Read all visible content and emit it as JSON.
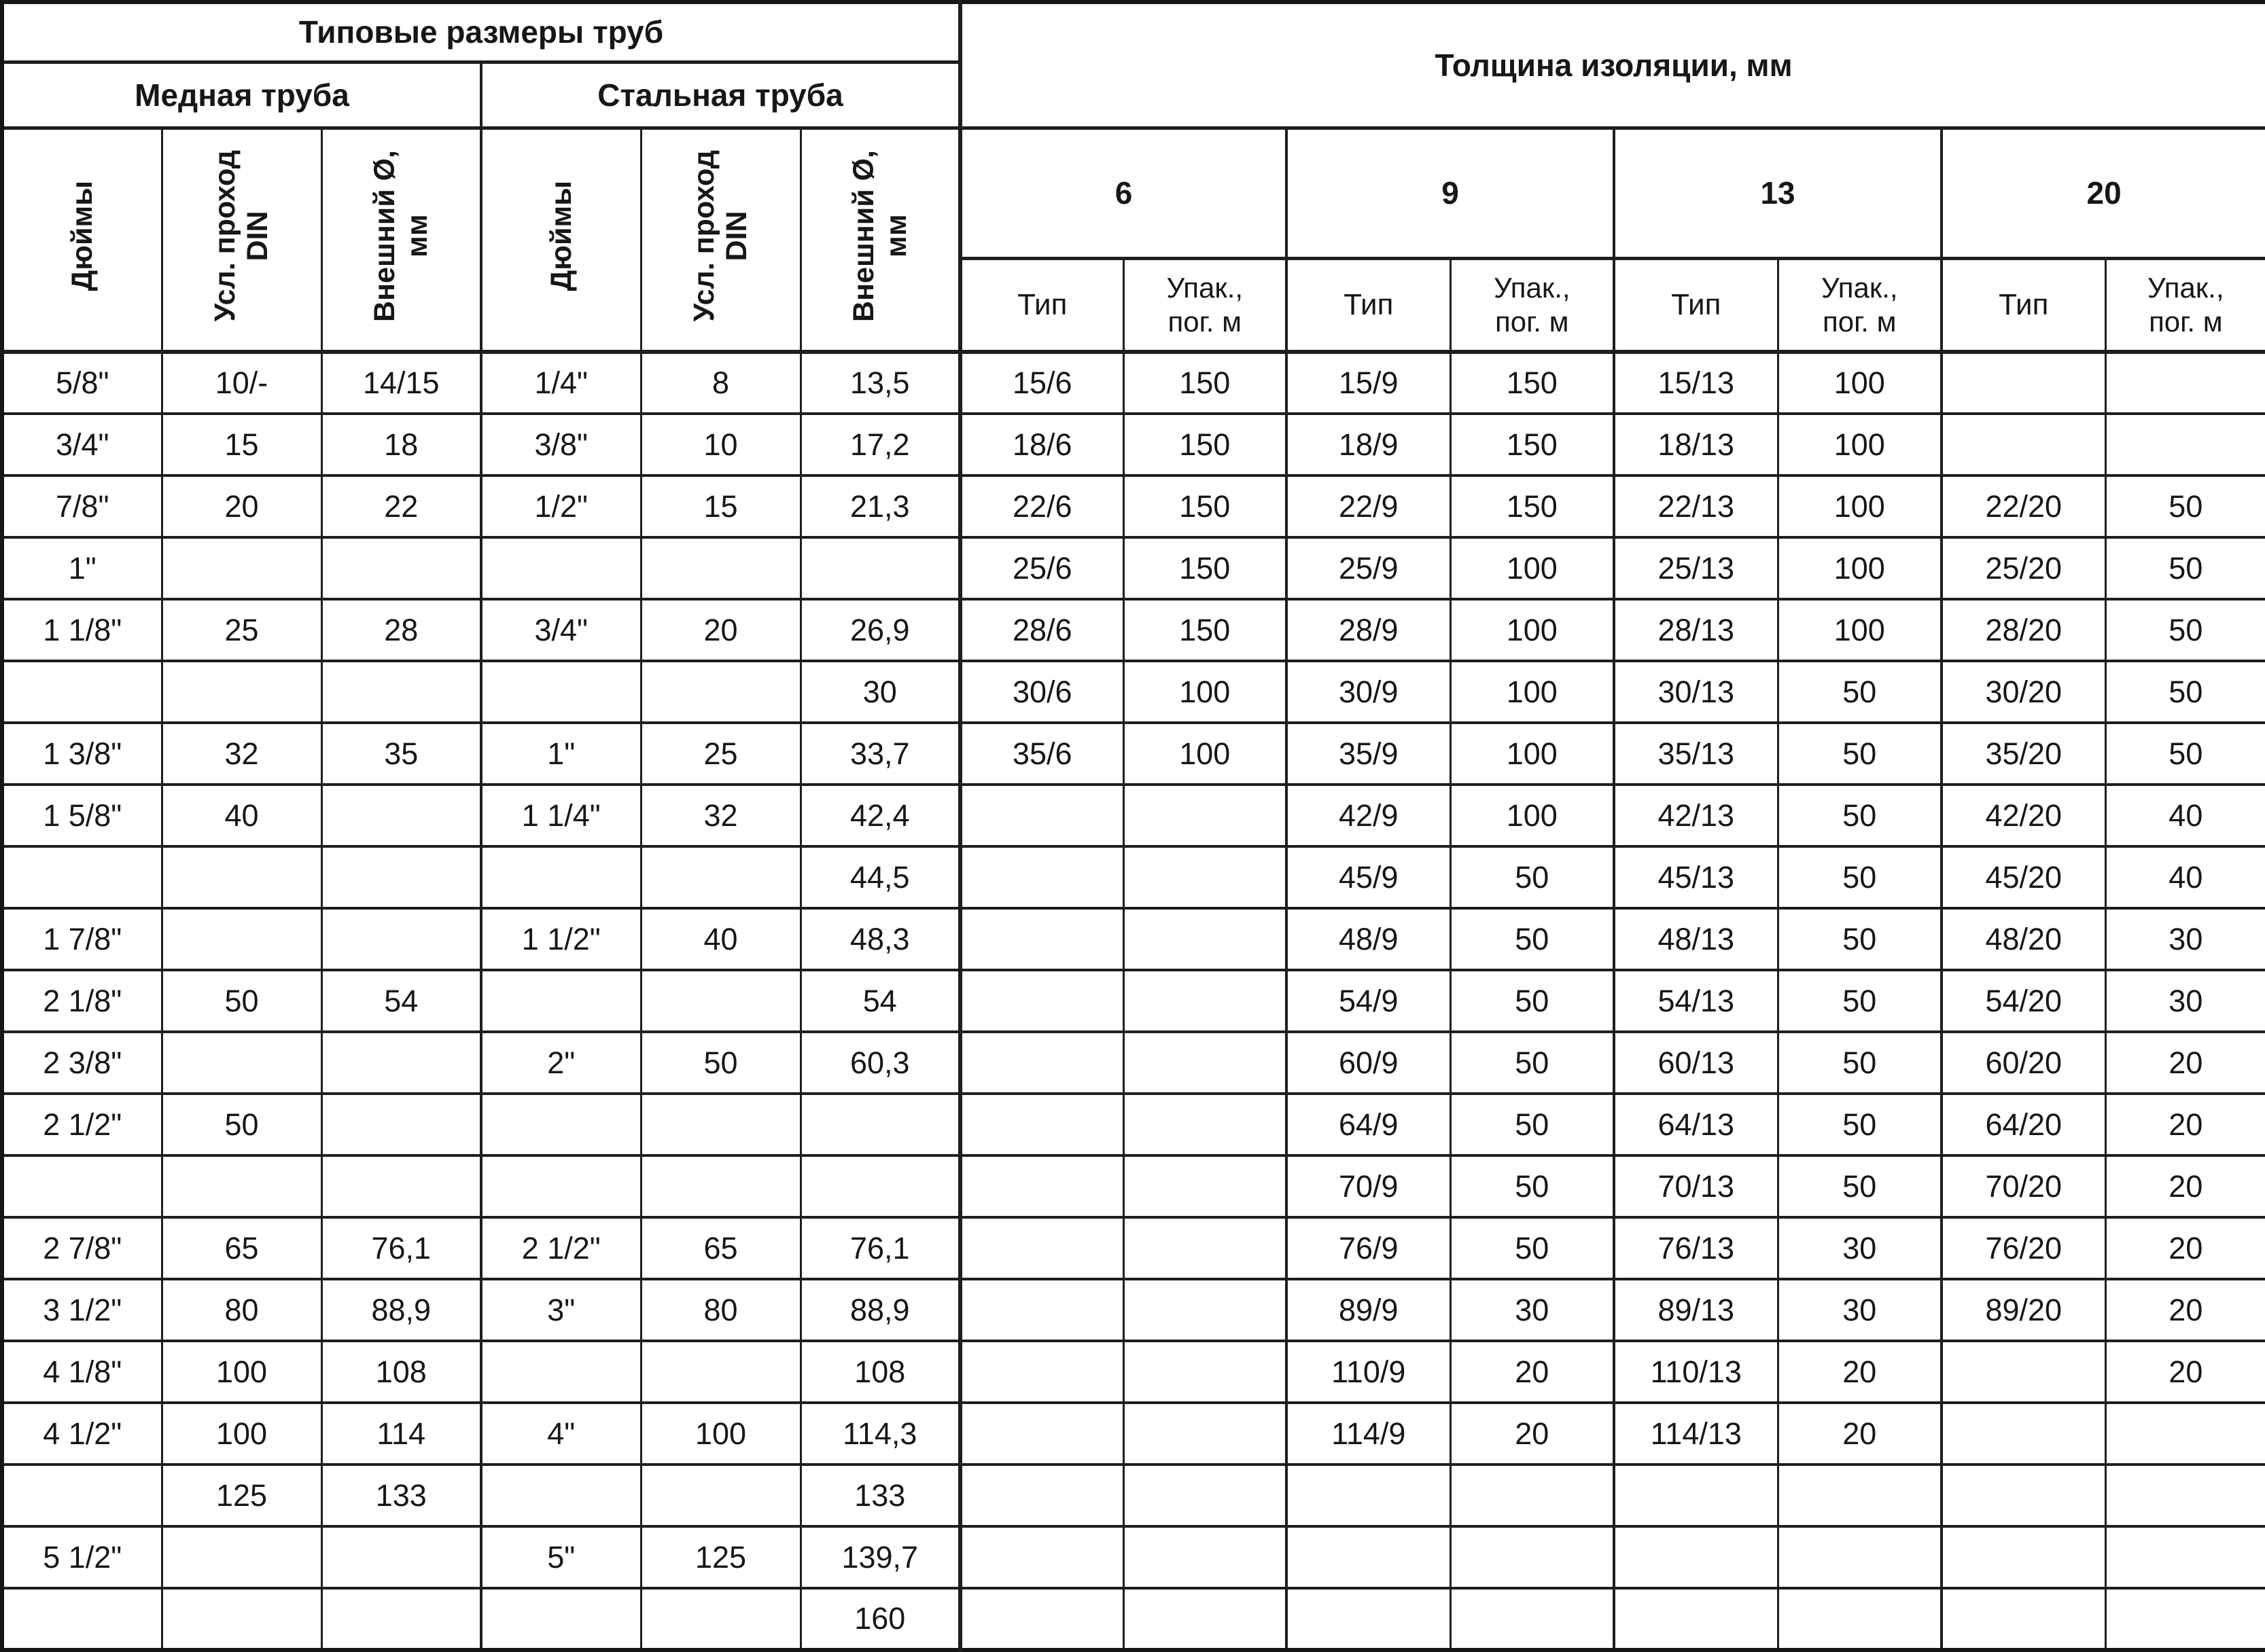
{
  "table": {
    "left_title": "Типовые размеры труб",
    "right_title": "Толщина изоляции, мм",
    "copper_title": "Медная труба",
    "steel_title": "Стальная труба",
    "pipe_columns": [
      "Дюймы",
      "Усл. проход\nDIN",
      "Внешний Ø,\nмм",
      "Дюймы",
      "Усл. проход\nDIN",
      "Внешний Ø,\nмм"
    ],
    "thickness_groups": [
      "6",
      "9",
      "13",
      "20"
    ],
    "type_label": "Тип",
    "pack_label": "Упак.,\nпог. м",
    "rows": [
      [
        "5/8\"",
        "10/-",
        "14/15",
        "1/4\"",
        "8",
        "13,5",
        "15/6",
        "150",
        "15/9",
        "150",
        "15/13",
        "100",
        "",
        ""
      ],
      [
        "3/4\"",
        "15",
        "18",
        "3/8\"",
        "10",
        "17,2",
        "18/6",
        "150",
        "18/9",
        "150",
        "18/13",
        "100",
        "",
        ""
      ],
      [
        "7/8\"",
        "20",
        "22",
        "1/2\"",
        "15",
        "21,3",
        "22/6",
        "150",
        "22/9",
        "150",
        "22/13",
        "100",
        "22/20",
        "50"
      ],
      [
        "1\"",
        "",
        "",
        "",
        "",
        "",
        "25/6",
        "150",
        "25/9",
        "100",
        "25/13",
        "100",
        "25/20",
        "50"
      ],
      [
        "1 1/8\"",
        "25",
        "28",
        "3/4\"",
        "20",
        "26,9",
        "28/6",
        "150",
        "28/9",
        "100",
        "28/13",
        "100",
        "28/20",
        "50"
      ],
      [
        "",
        "",
        "",
        "",
        "",
        "30",
        "30/6",
        "100",
        "30/9",
        "100",
        "30/13",
        "50",
        "30/20",
        "50"
      ],
      [
        "1 3/8\"",
        "32",
        "35",
        "1\"",
        "25",
        "33,7",
        "35/6",
        "100",
        "35/9",
        "100",
        "35/13",
        "50",
        "35/20",
        "50"
      ],
      [
        "1 5/8\"",
        "40",
        "",
        "1 1/4\"",
        "32",
        "42,4",
        "",
        "",
        "42/9",
        "100",
        "42/13",
        "50",
        "42/20",
        "40"
      ],
      [
        "",
        "",
        "",
        "",
        "",
        "44,5",
        "",
        "",
        "45/9",
        "50",
        "45/13",
        "50",
        "45/20",
        "40"
      ],
      [
        "1 7/8\"",
        "",
        "",
        "1 1/2\"",
        "40",
        "48,3",
        "",
        "",
        "48/9",
        "50",
        "48/13",
        "50",
        "48/20",
        "30"
      ],
      [
        "2 1/8\"",
        "50",
        "54",
        "",
        "",
        "54",
        "",
        "",
        "54/9",
        "50",
        "54/13",
        "50",
        "54/20",
        "30"
      ],
      [
        "2 3/8\"",
        "",
        "",
        "2\"",
        "50",
        "60,3",
        "",
        "",
        "60/9",
        "50",
        "60/13",
        "50",
        "60/20",
        "20"
      ],
      [
        "2 1/2\"",
        "50",
        "",
        "",
        "",
        "",
        "",
        "",
        "64/9",
        "50",
        "64/13",
        "50",
        "64/20",
        "20"
      ],
      [
        "",
        "",
        "",
        "",
        "",
        "",
        "",
        "",
        "70/9",
        "50",
        "70/13",
        "50",
        "70/20",
        "20"
      ],
      [
        "2 7/8\"",
        "65",
        "76,1",
        "2 1/2\"",
        "65",
        "76,1",
        "",
        "",
        "76/9",
        "50",
        "76/13",
        "30",
        "76/20",
        "20"
      ],
      [
        "3 1/2\"",
        "80",
        "88,9",
        "3\"",
        "80",
        "88,9",
        "",
        "",
        "89/9",
        "30",
        "89/13",
        "30",
        "89/20",
        "20"
      ],
      [
        "4 1/8\"",
        "100",
        "108",
        "",
        "",
        "108",
        "",
        "",
        "110/9",
        "20",
        "110/13",
        "20",
        "",
        "20"
      ],
      [
        "4 1/2\"",
        "100",
        "114",
        "4\"",
        "100",
        "114,3",
        "",
        "",
        "114/9",
        "20",
        "114/13",
        "20",
        "",
        ""
      ],
      [
        "",
        "125",
        "133",
        "",
        "",
        "133",
        "",
        "",
        "",
        "",
        "",
        "",
        "",
        ""
      ],
      [
        "5 1/2\"",
        "",
        "",
        "5\"",
        "125",
        "139,7",
        "",
        "",
        "",
        "",
        "",
        "",
        "",
        ""
      ],
      [
        "",
        "",
        "",
        "",
        "",
        "160",
        "",
        "",
        "",
        "",
        "",
        "",
        "",
        ""
      ]
    ]
  }
}
